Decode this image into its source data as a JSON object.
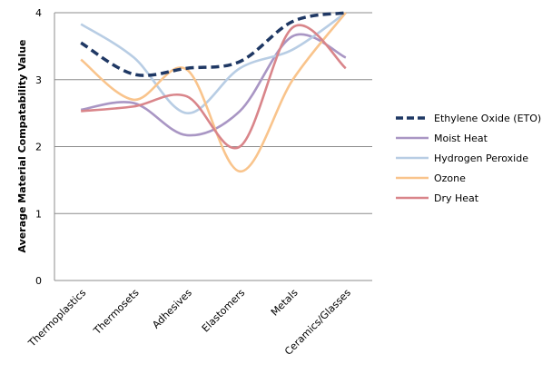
{
  "chart_data": {
    "type": "line",
    "title": "",
    "xlabel": "",
    "ylabel": "Average Material Compatability Value",
    "ylim": [
      0,
      4
    ],
    "yticks": [
      "0",
      "1",
      "2",
      "3",
      "4"
    ],
    "grid": true,
    "legend_position": "right",
    "categories": [
      "Thermoplastics",
      "Thermosets",
      "Adhesives",
      "Elastomers",
      "Metals",
      "Ceramics/Glasses"
    ],
    "series": [
      {
        "name": "Ethylene Oxide (ETO)",
        "color": "#1f3864",
        "dashed": true,
        "values": [
          3.55,
          3.08,
          3.17,
          3.27,
          3.87,
          4.0
        ]
      },
      {
        "name": "Moist Heat",
        "color": "#a996c4",
        "dashed": false,
        "values": [
          2.55,
          2.65,
          2.17,
          2.53,
          3.65,
          3.33
        ]
      },
      {
        "name": "Hydrogen Peroxide",
        "color": "#b8cde4",
        "dashed": false,
        "values": [
          3.83,
          3.33,
          2.5,
          3.17,
          3.45,
          4.0
        ]
      },
      {
        "name": "Ozone",
        "color": "#f9c48c",
        "dashed": false,
        "values": [
          3.3,
          2.7,
          3.15,
          1.63,
          3.0,
          4.0
        ]
      },
      {
        "name": "Dry Heat",
        "color": "#d9858a",
        "dashed": false,
        "values": [
          2.53,
          2.6,
          2.75,
          2.0,
          3.78,
          3.17
        ]
      }
    ]
  }
}
